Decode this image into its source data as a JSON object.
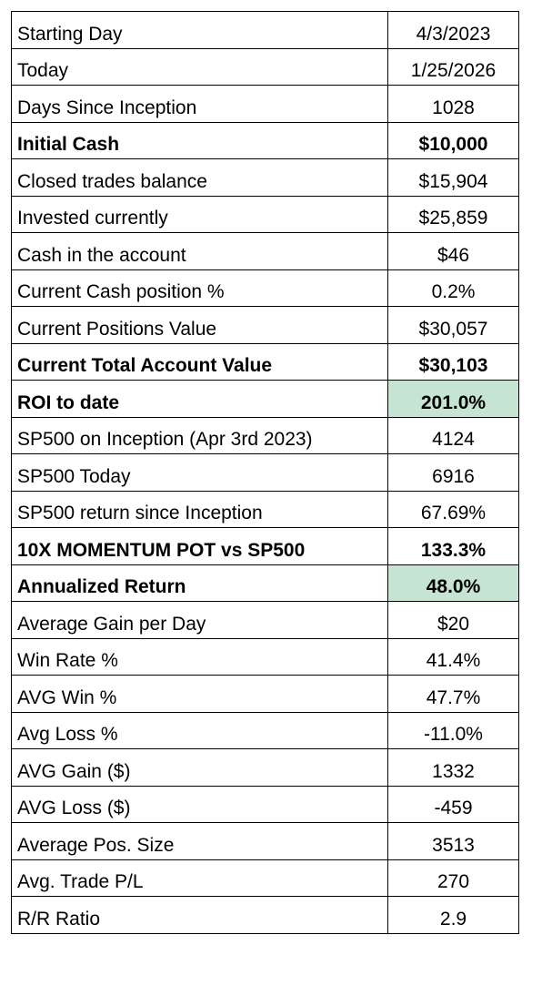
{
  "rows": [
    {
      "label": "Starting Day",
      "value": "4/3/2023",
      "bold": false,
      "highlight": false
    },
    {
      "label": "Today",
      "value": "1/25/2026",
      "bold": false,
      "highlight": false
    },
    {
      "label": "Days Since Inception",
      "value": "1028",
      "bold": false,
      "highlight": false
    },
    {
      "label": "Initial Cash",
      "value": "$10,000",
      "bold": true,
      "highlight": false
    },
    {
      "label": "Closed trades balance",
      "value": "$15,904",
      "bold": false,
      "highlight": false
    },
    {
      "label": "Invested currently",
      "value": "$25,859",
      "bold": false,
      "highlight": false
    },
    {
      "label": "Cash in the account",
      "value": "$46",
      "bold": false,
      "highlight": false
    },
    {
      "label": "Current Cash position %",
      "value": "0.2%",
      "bold": false,
      "highlight": false
    },
    {
      "label": "Current Positions Value",
      "value": "$30,057",
      "bold": false,
      "highlight": false
    },
    {
      "label": "Current Total Account Value",
      "value": "$30,103",
      "bold": true,
      "highlight": false
    },
    {
      "label": "ROI to date",
      "value": "201.0%",
      "bold": true,
      "highlight": true
    },
    {
      "label": "SP500 on Inception (Apr 3rd 2023)",
      "value": "4124",
      "bold": false,
      "highlight": false
    },
    {
      "label": "SP500 Today",
      "value": "6916",
      "bold": false,
      "highlight": false
    },
    {
      "label": "SP500 return since Inception",
      "value": "67.69%",
      "bold": false,
      "highlight": false
    },
    {
      "label": "10X MOMENTUM POT vs SP500",
      "value": "133.3%",
      "bold": true,
      "highlight": false
    },
    {
      "label": "Annualized Return",
      "value": "48.0%",
      "bold": true,
      "highlight": true
    },
    {
      "label": "Average Gain per Day",
      "value": "$20",
      "bold": false,
      "highlight": false
    },
    {
      "label": "Win Rate %",
      "value": "41.4%",
      "bold": false,
      "highlight": false
    },
    {
      "label": "AVG Win %",
      "value": "47.7%",
      "bold": false,
      "highlight": false
    },
    {
      "label": "Avg Loss %",
      "value": "-11.0%",
      "bold": false,
      "highlight": false
    },
    {
      "label": "AVG Gain ($)",
      "value": "1332",
      "bold": false,
      "highlight": false
    },
    {
      "label": "AVG Loss ($)",
      "value": "-459",
      "bold": false,
      "highlight": false
    },
    {
      "label": "Average Pos. Size",
      "value": "3513",
      "bold": false,
      "highlight": false
    },
    {
      "label": "Avg. Trade P/L",
      "value": "270",
      "bold": false,
      "highlight": false
    },
    {
      "label": "R/R Ratio",
      "value": "2.9",
      "bold": false,
      "highlight": false
    }
  ],
  "colors": {
    "highlight_fill": "#c5e4d2",
    "border": "#000000",
    "text": "#000000"
  }
}
